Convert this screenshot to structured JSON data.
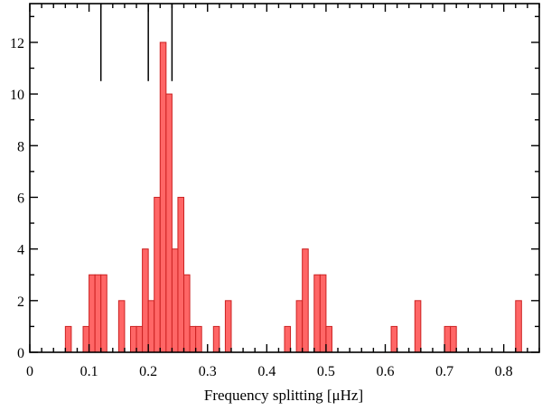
{
  "chart_data": {
    "type": "bar",
    "title": "",
    "xlabel": "Frequency splitting [μHz]",
    "ylabel": "",
    "xlim": [
      0,
      0.86
    ],
    "ylim": [
      0,
      13.5
    ],
    "bin_width": 0.01,
    "xticks": [
      0,
      0.1,
      0.2,
      0.3,
      0.4,
      0.5,
      0.6,
      0.7,
      0.8
    ],
    "xtick_labels": [
      "0",
      "0.1",
      "0.2",
      "0.3",
      "0.4",
      "0.5",
      "0.6",
      "0.7",
      "0.8"
    ],
    "yticks": [
      0,
      2,
      4,
      6,
      8,
      10,
      12
    ],
    "ytick_labels": [
      "0",
      "2",
      "4",
      "6",
      "8",
      "10",
      "12"
    ],
    "bins": [
      {
        "x": 0.065,
        "count": 1
      },
      {
        "x": 0.095,
        "count": 1
      },
      {
        "x": 0.105,
        "count": 3
      },
      {
        "x": 0.115,
        "count": 3
      },
      {
        "x": 0.125,
        "count": 3
      },
      {
        "x": 0.155,
        "count": 2
      },
      {
        "x": 0.175,
        "count": 1
      },
      {
        "x": 0.185,
        "count": 1
      },
      {
        "x": 0.195,
        "count": 4
      },
      {
        "x": 0.205,
        "count": 2
      },
      {
        "x": 0.215,
        "count": 6
      },
      {
        "x": 0.225,
        "count": 12
      },
      {
        "x": 0.235,
        "count": 10
      },
      {
        "x": 0.245,
        "count": 4
      },
      {
        "x": 0.255,
        "count": 6
      },
      {
        "x": 0.265,
        "count": 3
      },
      {
        "x": 0.275,
        "count": 1
      },
      {
        "x": 0.285,
        "count": 1
      },
      {
        "x": 0.315,
        "count": 1
      },
      {
        "x": 0.335,
        "count": 2
      },
      {
        "x": 0.435,
        "count": 1
      },
      {
        "x": 0.455,
        "count": 2
      },
      {
        "x": 0.465,
        "count": 4
      },
      {
        "x": 0.485,
        "count": 3
      },
      {
        "x": 0.495,
        "count": 3
      },
      {
        "x": 0.505,
        "count": 1
      },
      {
        "x": 0.615,
        "count": 1
      },
      {
        "x": 0.655,
        "count": 2
      },
      {
        "x": 0.705,
        "count": 1
      },
      {
        "x": 0.715,
        "count": 1
      },
      {
        "x": 0.825,
        "count": 2
      }
    ],
    "markers": [
      {
        "x": 0.12,
        "y_from": 10.5,
        "y_to": 13.5
      },
      {
        "x": 0.2,
        "y_from": 10.5,
        "y_to": 13.5
      },
      {
        "x": 0.24,
        "y_from": 10.5,
        "y_to": 13.5
      }
    ],
    "colors": {
      "bar_fill": "#ff6666",
      "bar_stroke": "#cc2222",
      "axis": "#000000",
      "marker": "#000000"
    },
    "grid": false,
    "legend": "none"
  }
}
